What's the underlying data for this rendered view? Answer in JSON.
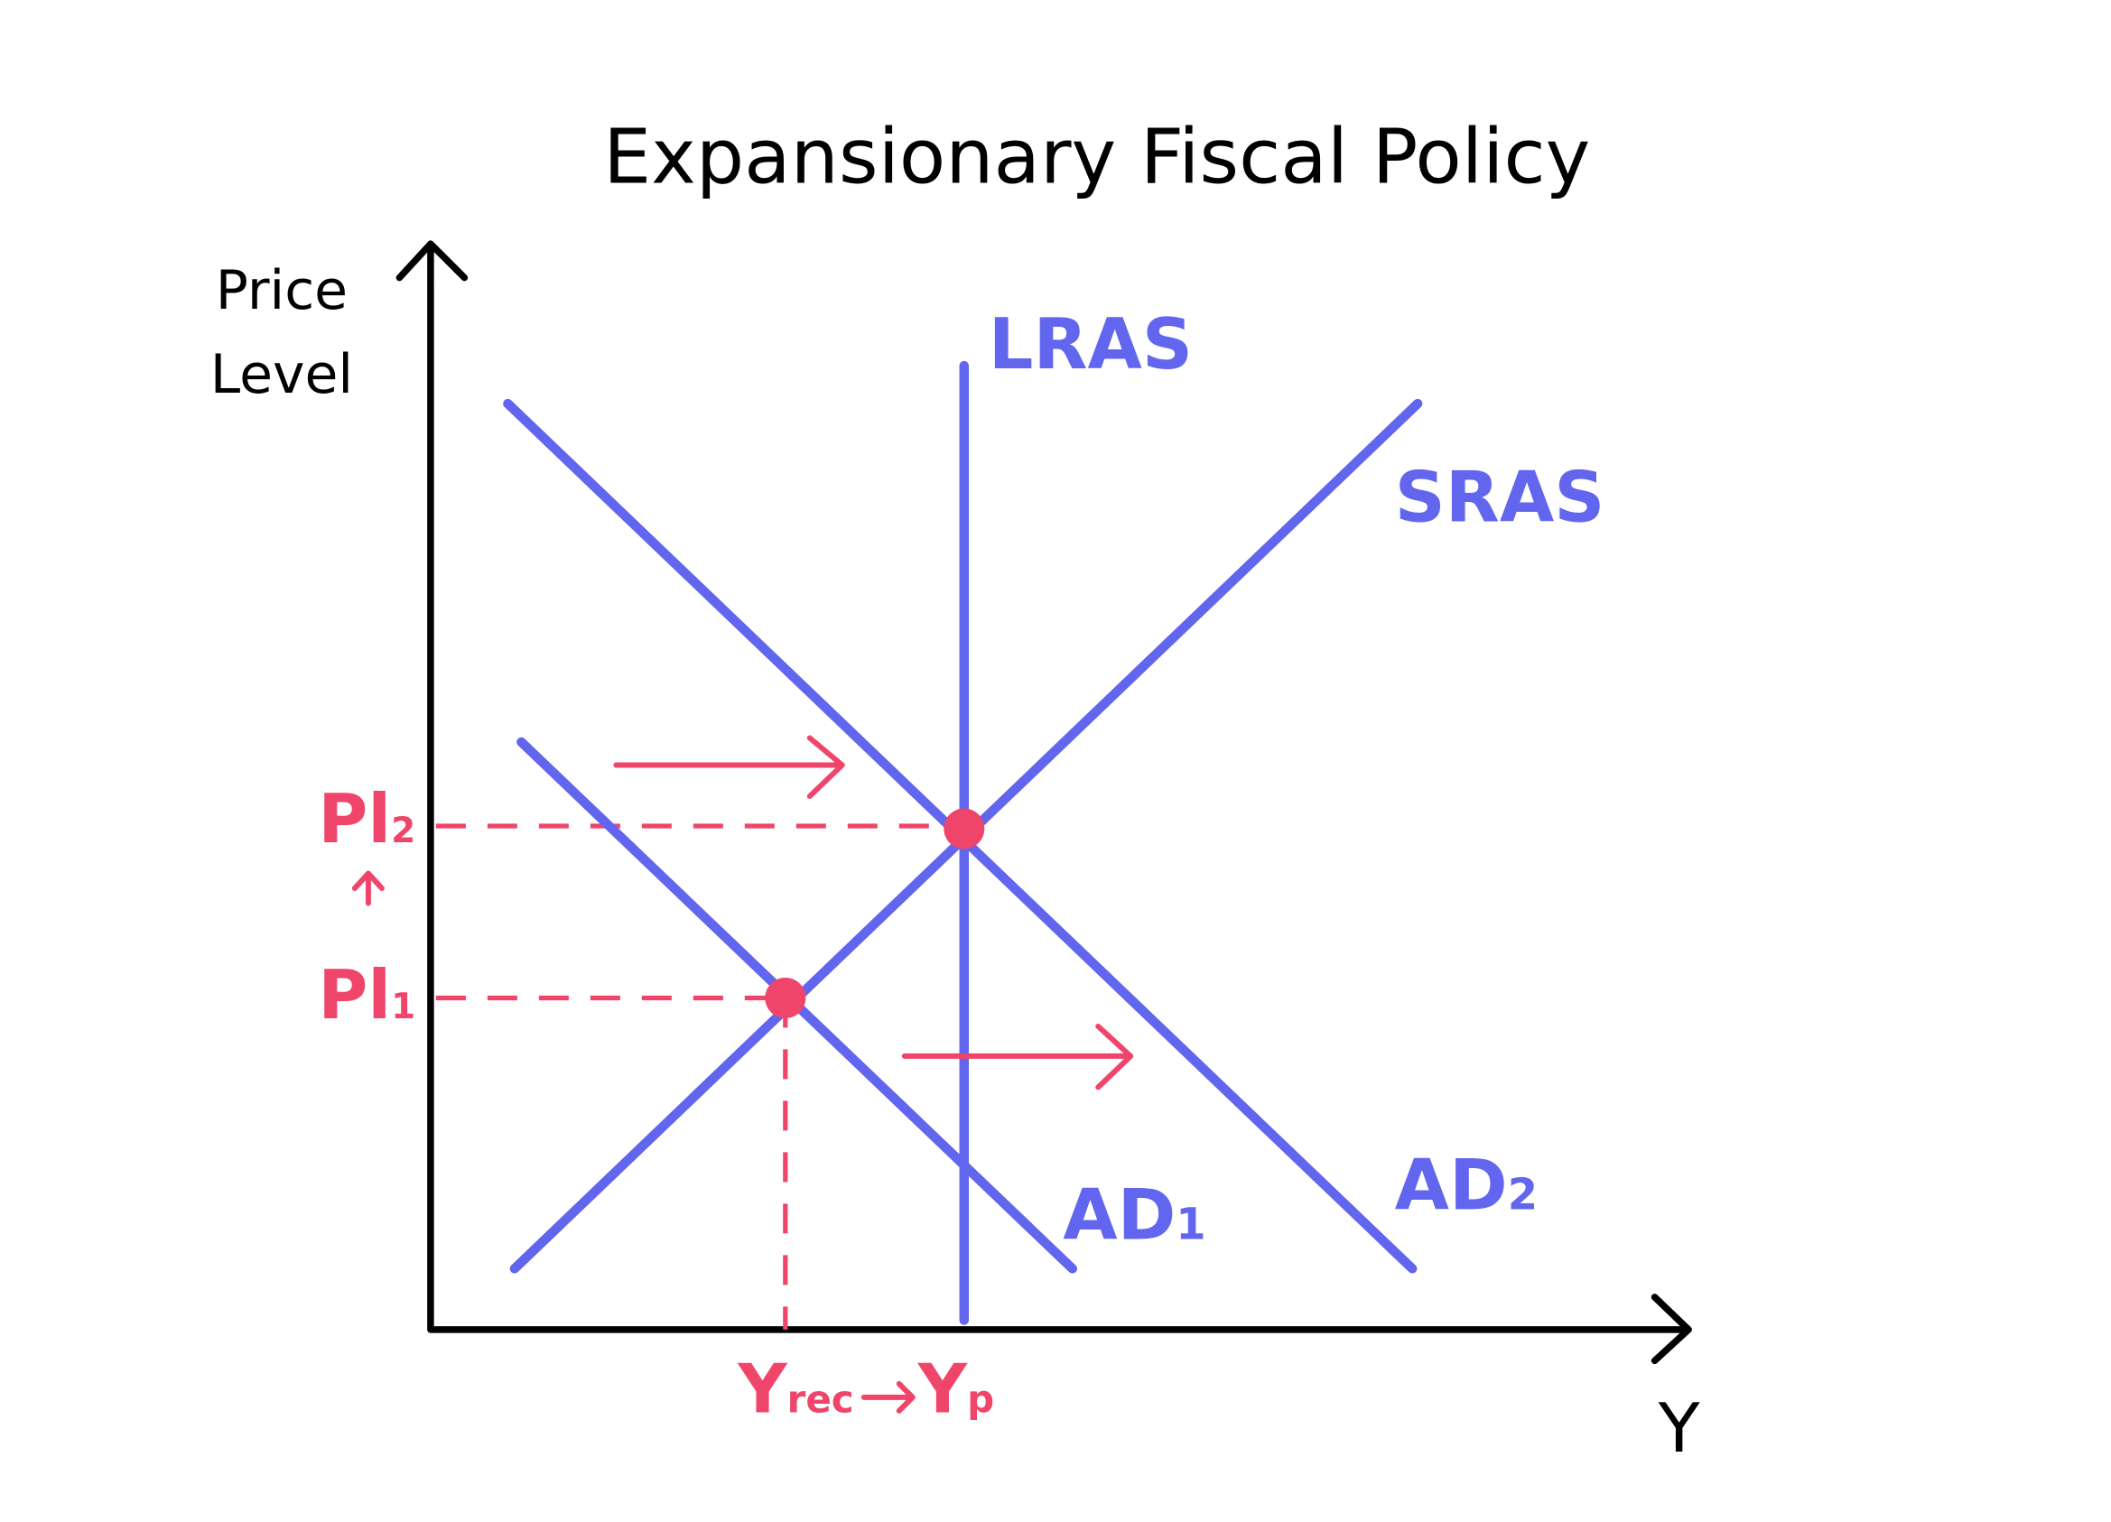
{
  "title": "Expansionary Fiscal Policy",
  "y_axis_label": [
    "Price",
    "Level"
  ],
  "x_axis_label": "Y",
  "curves": {
    "lras": "LRAS",
    "sras": "SRAS",
    "ad1": {
      "main": "AD",
      "sub": "1"
    },
    "ad2": {
      "main": "AD",
      "sub": "2"
    }
  },
  "price_levels": [
    {
      "main": "Pl",
      "sub": "2"
    },
    {
      "main": "Pl",
      "sub": "1"
    }
  ],
  "outputs": [
    {
      "main": "Y",
      "sub": "rec"
    },
    {
      "main": "Y",
      "sub": "p"
    }
  ]
}
